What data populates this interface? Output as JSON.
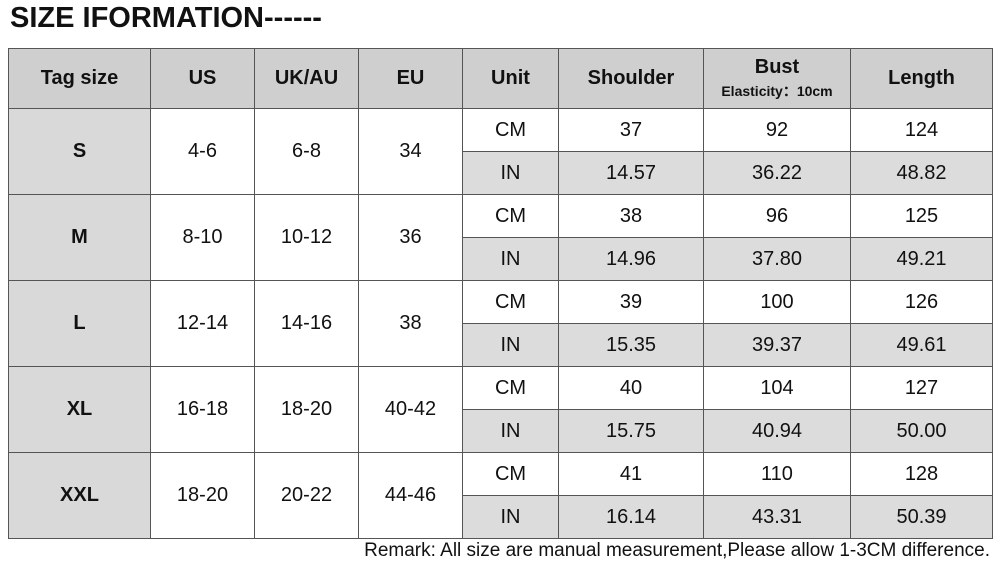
{
  "header": {
    "title": "SIZE IFORMATION------"
  },
  "table": {
    "columns": [
      "Tag size",
      "US",
      "UK/AU",
      "EU",
      "Unit",
      "Shoulder",
      "Bust",
      "Length"
    ],
    "bust_note": "Elasticity：10cm",
    "rows": [
      {
        "tag": "S",
        "us": "4-6",
        "uk_au": "6-8",
        "eu": "34",
        "cm": [
          "CM",
          "37",
          "92",
          "124"
        ],
        "in": [
          "IN",
          "14.57",
          "36.22",
          "48.82"
        ]
      },
      {
        "tag": "M",
        "us": "8-10",
        "uk_au": "10-12",
        "eu": "36",
        "cm": [
          "CM",
          "38",
          "96",
          "125"
        ],
        "in": [
          "IN",
          "14.96",
          "37.80",
          "49.21"
        ]
      },
      {
        "tag": "L",
        "us": "12-14",
        "uk_au": "14-16",
        "eu": "38",
        "cm": [
          "CM",
          "39",
          "100",
          "126"
        ],
        "in": [
          "IN",
          "15.35",
          "39.37",
          "49.61"
        ]
      },
      {
        "tag": "XL",
        "us": "16-18",
        "uk_au": "18-20",
        "eu": "40-42",
        "cm": [
          "CM",
          "40",
          "104",
          "127"
        ],
        "in": [
          "IN",
          "15.75",
          "40.94",
          "50.00"
        ]
      },
      {
        "tag": "XXL",
        "us": "18-20",
        "uk_au": "20-22",
        "eu": "44-46",
        "cm": [
          "CM",
          "41",
          "110",
          "128"
        ],
        "in": [
          "IN",
          "16.14",
          "43.31",
          "50.39"
        ]
      }
    ]
  },
  "remark": "Remark: All size are manual measurement,Please allow 1-3CM difference."
}
